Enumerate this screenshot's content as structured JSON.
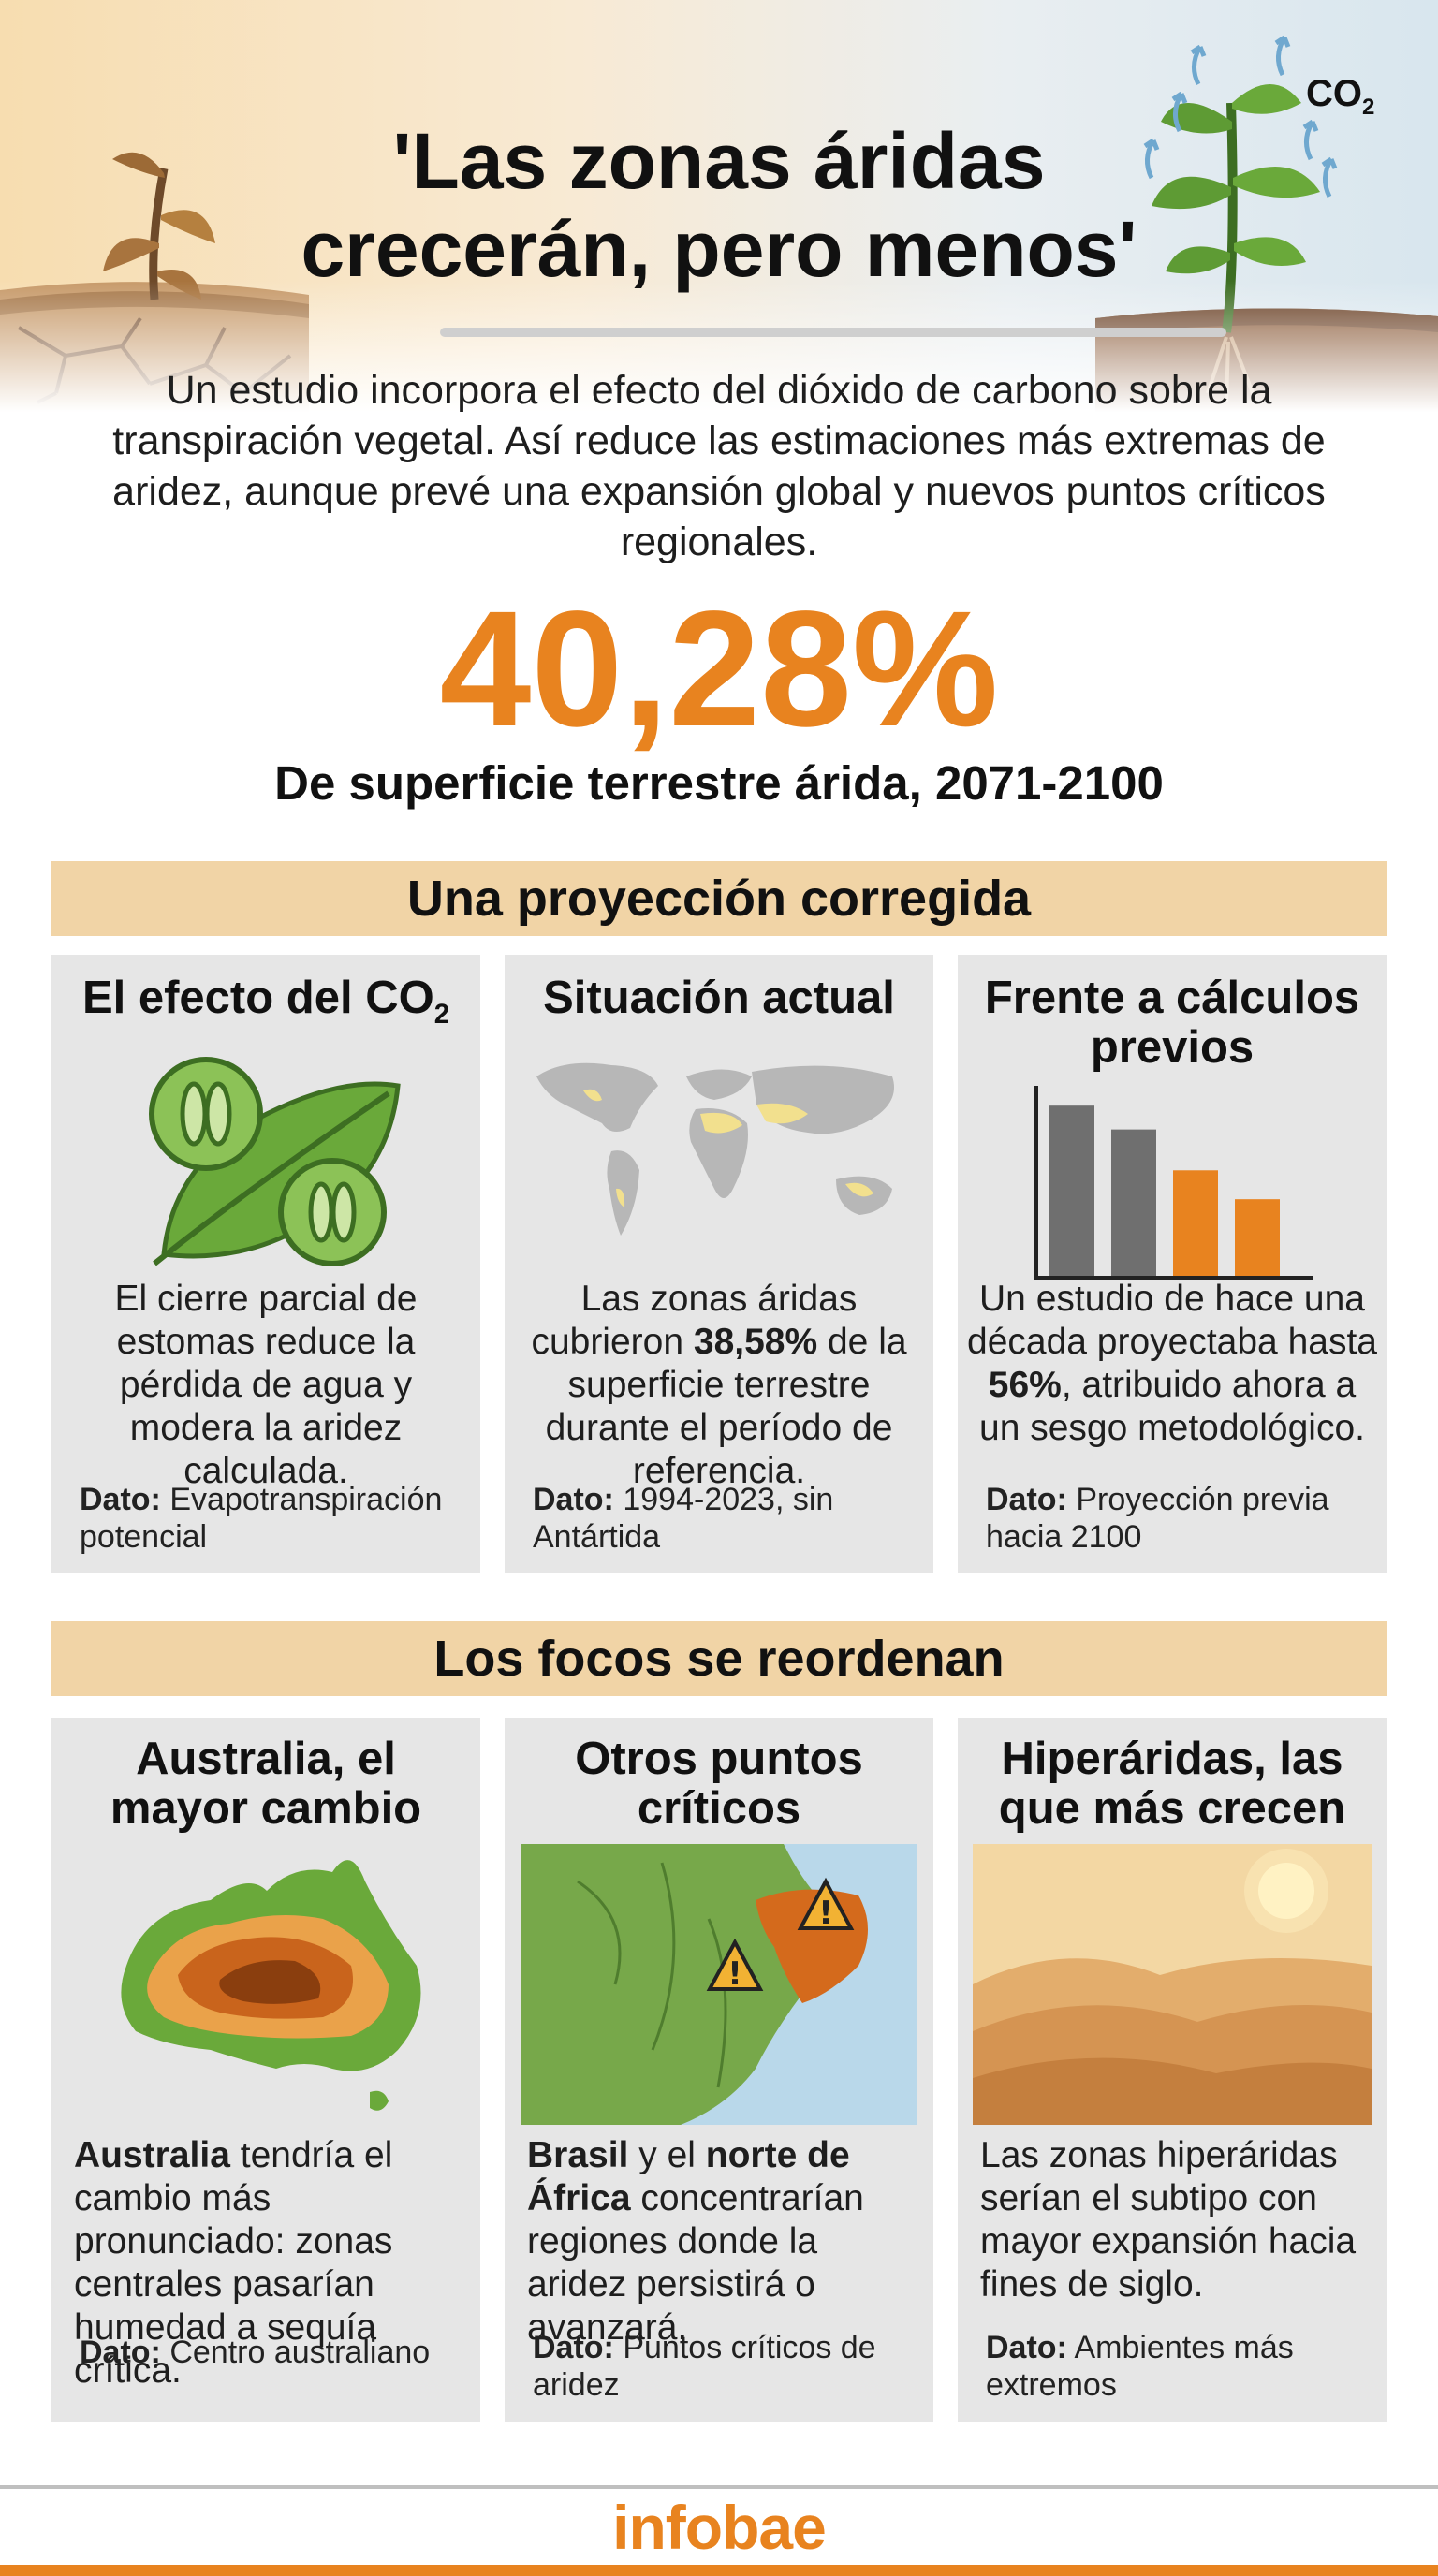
{
  "header": {
    "title_line1": "'Las zonas áridas",
    "title_line2": "crecerán, pero menos'",
    "co2_label": "CO",
    "co2_sub": "2",
    "subtitle": "Un estudio incorpora el efecto del dióxido de carbono sobre la transpiración vegetal. Así reduce las estimaciones más extremas de aridez, aunque prevé una expansión global y nuevos puntos críticos regionales."
  },
  "headline_stat": {
    "value": "40,28%",
    "caption": "De superficie terrestre árida, 2071-2100"
  },
  "section1": {
    "title": "Una proyección corregida",
    "cards": [
      {
        "title": "El efecto del CO",
        "title_sub": "2",
        "icon": "leaf-stomata-icon",
        "body": "El cierre parcial de estomas reduce la pérdida de agua y modera la aridez calculada.",
        "dato_label": "Dato:",
        "dato_text": "Evapotranspiración potencial"
      },
      {
        "title": "Situación actual",
        "icon": "world-map-icon",
        "body_pre": "Las zonas áridas cubrieron ",
        "body_bold": "38,58%",
        "body_post": " de la superficie terrestre durante el período de referencia.",
        "dato_label": "Dato:",
        "dato_text": "1994-2023, sin Antártida"
      },
      {
        "title": "Frente a cálculos previos",
        "icon": "bar-chart-icon",
        "chart_data": {
          "type": "bar",
          "categories": [
            "",
            "",
            "",
            ""
          ],
          "values": [
            100,
            86,
            62,
            45
          ],
          "colors": [
            "#6f6f6f",
            "#6f6f6f",
            "#e8831f",
            "#e8831f"
          ],
          "ylim": [
            0,
            110
          ]
        },
        "body_pre": "Un estudio de hace una década proyectaba hasta ",
        "body_bold": "56%",
        "body_post": ", atribuido ahora a un sesgo metodológico.",
        "dato_label": "Dato:",
        "dato_text": "Proyección previa hacia 2100"
      }
    ]
  },
  "section2": {
    "title": "Los focos se reordenan",
    "cards": [
      {
        "title": "Australia, el mayor cambio",
        "icon": "australia-map-icon",
        "body_bold": "Australia",
        "body_post": " tendría el cambio más pronunciado: zonas centrales pasarían humedad a sequía crítica.",
        "dato_label": "Dato:",
        "dato_text": "Centro australiano"
      },
      {
        "title": "Otros puntos críticos",
        "icon": "brazil-map-warning-icon",
        "body_bold1": "Brasil",
        "body_mid": " y el ",
        "body_bold2": "norte de África",
        "body_post": " concentrarían regiones donde la aridez persistirá o avanzará.",
        "dato_label": "Dato:",
        "dato_text": "Puntos críticos de aridez"
      },
      {
        "title": "Hiperáridas, las que más crecen",
        "icon": "desert-dunes-icon",
        "body": "Las zonas hiperáridas serían el subtipo con mayor expansión hacia fines de siglo.",
        "dato_label": "Dato:",
        "dato_text": "Ambientes más extremos"
      }
    ]
  },
  "footer": {
    "logo": "infobae"
  },
  "colors": {
    "accent": "#e8831f",
    "band": "#f1d4a6",
    "card": "#e6e6e6"
  }
}
